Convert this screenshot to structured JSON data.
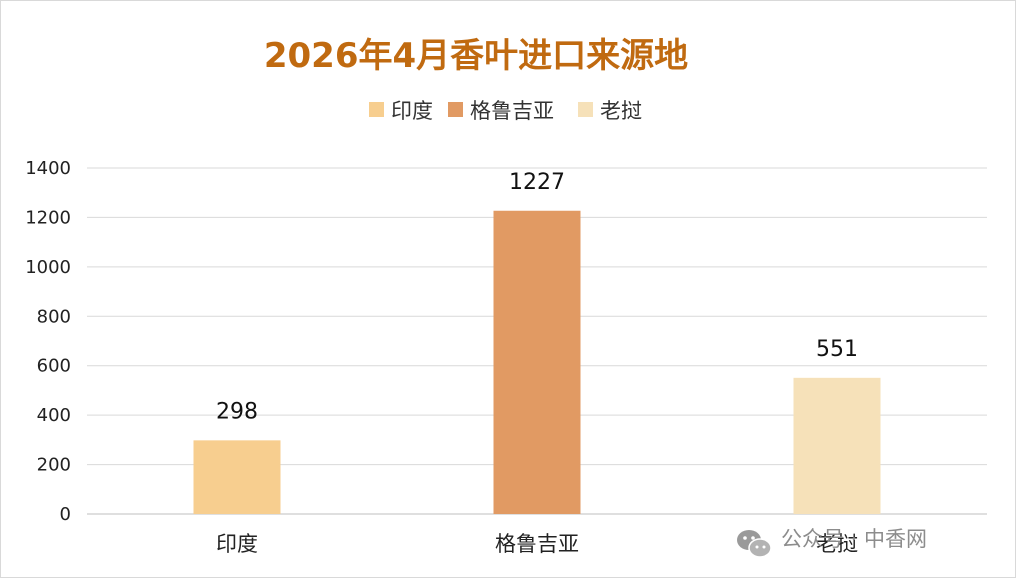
{
  "chart_data": {
    "type": "bar",
    "title": "2026年4月香叶进口来源地",
    "categories": [
      "印度",
      "格鲁吉亚",
      "老挝"
    ],
    "values": [
      298,
      1227,
      551
    ],
    "data_labels": [
      "298",
      "1227",
      "551"
    ],
    "ylim": [
      0,
      1400
    ],
    "y_ticks": [
      "0",
      "200",
      "400",
      "600",
      "800",
      "1000",
      "1200",
      "1400"
    ],
    "grid": true,
    "legend_position": "top",
    "legend": [
      "印度",
      "格鲁吉亚",
      "老挝"
    ],
    "colors": [
      "#F7CE8F",
      "#E19A63",
      "#F6E1B9"
    ],
    "title_color": "#C06A10"
  },
  "watermark": {
    "icon": "wechat-icon",
    "text": "公众号 · 中香网"
  }
}
